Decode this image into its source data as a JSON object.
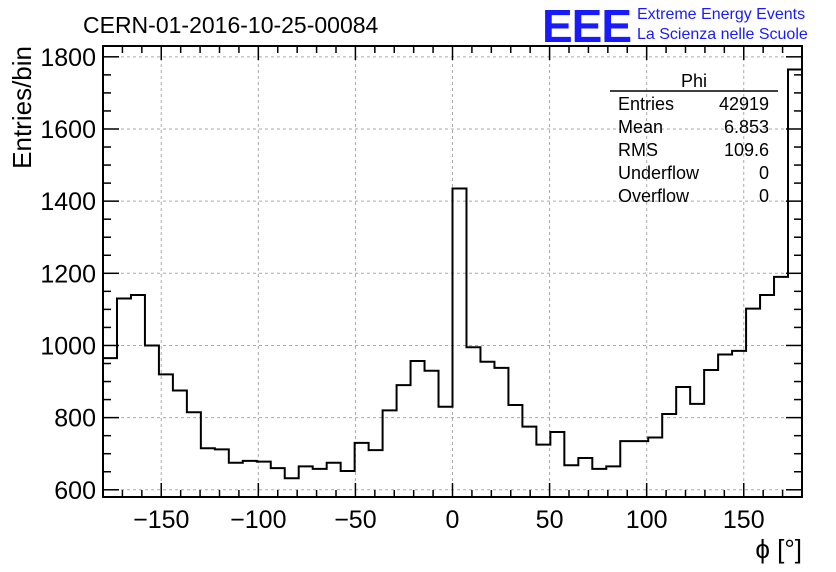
{
  "chart_data": {
    "type": "bar",
    "title": "CERN-01-2016-10-25-00084",
    "xlabel": "ϕ [°]",
    "ylabel": "Entries/bin",
    "xlim": [
      -180,
      180
    ],
    "ylim": [
      580,
      1830
    ],
    "bin_width": 7.2,
    "x_ticks": [
      -150,
      -100,
      -50,
      0,
      50,
      100,
      150
    ],
    "x_tick_labels": [
      "−150",
      "−100",
      "−50",
      "0",
      "50",
      "100",
      "150"
    ],
    "y_ticks": [
      600,
      800,
      1000,
      1200,
      1400,
      1600,
      1800
    ],
    "y_tick_labels": [
      "600",
      "800",
      "1000",
      "1200",
      "1400",
      "1600",
      "1800"
    ],
    "grid": true,
    "values": [
      965,
      1130,
      1140,
      1000,
      920,
      875,
      815,
      715,
      712,
      675,
      680,
      678,
      660,
      632,
      665,
      658,
      675,
      652,
      730,
      710,
      820,
      890,
      957,
      930,
      830,
      1435,
      995,
      955,
      938,
      835,
      775,
      725,
      760,
      668,
      688,
      658,
      665,
      735,
      735,
      745,
      810,
      885,
      838,
      932,
      975,
      985,
      1102,
      1140,
      1190,
      1765
    ],
    "stats_box": {
      "title": "Phi",
      "rows": [
        {
          "label": "Entries",
          "value": "42919"
        },
        {
          "label": "Mean",
          "value": "6.853"
        },
        {
          "label": "RMS",
          "value": "109.6"
        },
        {
          "label": "Underflow",
          "value": "0"
        },
        {
          "label": "Overflow",
          "value": "0"
        }
      ]
    },
    "logo": {
      "mark": "EEE",
      "line1": "Extreme Energy Events",
      "line2": "La Scienza nelle Scuole",
      "color": "#1a1aff"
    }
  }
}
